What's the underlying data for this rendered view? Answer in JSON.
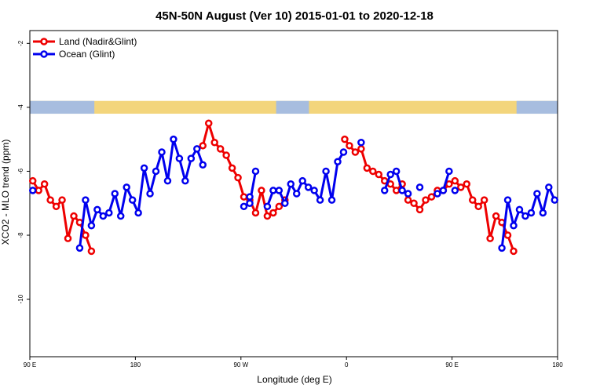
{
  "chart_data": {
    "type": "line",
    "title": "45N-50N August (Ver 10)   2015-01-01 to 2020-12-18",
    "xlabel": "Longitude (deg E)",
    "ylabel": "XCO2 - MLO trend (ppm)",
    "xlim": [
      90,
      540
    ],
    "ylim": [
      -11.8,
      -1.6
    ],
    "x_ticks": [
      {
        "value": 90,
        "label": "90 E"
      },
      {
        "value": 180,
        "label": "180"
      },
      {
        "value": 270,
        "label": "90 W"
      },
      {
        "value": 360,
        "label": "0"
      },
      {
        "value": 450,
        "label": "90 E"
      },
      {
        "value": 540,
        "label": "180"
      }
    ],
    "y_ticks": [
      -2,
      -4,
      -6,
      -8,
      -10
    ],
    "grid": false,
    "legend_position": "top-left",
    "land_band": {
      "y_top": -3.8,
      "y_bottom": -4.2,
      "land_color": "#f3d57c",
      "ocean_color": "#a7bddf"
    },
    "series": [
      {
        "name": "Land (Nadir&Glint)",
        "color": "#ee0000",
        "segments": [
          [
            [
              92.5,
              -6.3
            ],
            [
              97.5,
              -6.6
            ],
            [
              102.5,
              -6.4
            ],
            [
              107.5,
              -6.9
            ],
            [
              112.5,
              -7.1
            ],
            [
              117.5,
              -6.9
            ],
            [
              122.5,
              -8.1
            ],
            [
              127.5,
              -7.4
            ],
            [
              132.5,
              -7.6
            ],
            [
              137.5,
              -8.0
            ],
            [
              142.5,
              -8.5
            ]
          ],
          [
            [
              237.5,
              -5.2
            ],
            [
              242.5,
              -4.5
            ],
            [
              247.5,
              -5.1
            ],
            [
              252.5,
              -5.3
            ],
            [
              257.5,
              -5.5
            ],
            [
              262.5,
              -5.9
            ],
            [
              267.5,
              -6.2
            ],
            [
              272.5,
              -6.8
            ],
            [
              277.5,
              -6.9
            ],
            [
              282.5,
              -7.3
            ],
            [
              287.5,
              -6.6
            ],
            [
              292.5,
              -7.4
            ],
            [
              297.5,
              -7.3
            ],
            [
              302.5,
              -7.1
            ],
            [
              307.5,
              -6.9
            ]
          ],
          [
            [
              358.5,
              -5.0
            ],
            [
              362.5,
              -5.2
            ],
            [
              367.5,
              -5.4
            ],
            [
              372.5,
              -5.3
            ],
            [
              377.5,
              -5.9
            ],
            [
              382.5,
              -6.0
            ],
            [
              387.5,
              -6.1
            ],
            [
              392.5,
              -6.3
            ],
            [
              397.5,
              -6.4
            ],
            [
              402.5,
              -6.6
            ],
            [
              407.5,
              -6.4
            ],
            [
              412.5,
              -6.9
            ],
            [
              417.5,
              -7.0
            ],
            [
              422.5,
              -7.2
            ],
            [
              427.5,
              -6.9
            ],
            [
              432.5,
              -6.8
            ],
            [
              437.5,
              -6.6
            ],
            [
              442.5,
              -6.6
            ],
            [
              447.5,
              -6.4
            ],
            [
              452.5,
              -6.3
            ],
            [
              457.5,
              -6.5
            ],
            [
              462.5,
              -6.4
            ],
            [
              467.5,
              -6.9
            ],
            [
              472.5,
              -7.1
            ],
            [
              477.5,
              -6.9
            ],
            [
              482.5,
              -8.1
            ],
            [
              487.5,
              -7.4
            ],
            [
              492.5,
              -7.6
            ],
            [
              497.5,
              -8.0
            ],
            [
              502.5,
              -8.5
            ]
          ]
        ]
      },
      {
        "name": "Ocean (Glint)",
        "color": "#0000ee",
        "segments": [
          [
            [
              92.5,
              -6.6
            ]
          ],
          [
            [
              132.5,
              -8.4
            ],
            [
              137.5,
              -6.9
            ],
            [
              142.5,
              -7.7
            ],
            [
              147.5,
              -7.2
            ],
            [
              152.5,
              -7.4
            ],
            [
              157.5,
              -7.3
            ],
            [
              162.5,
              -6.7
            ],
            [
              167.5,
              -7.4
            ],
            [
              172.5,
              -6.5
            ],
            [
              177.5,
              -6.9
            ],
            [
              182.5,
              -7.3
            ],
            [
              187.5,
              -5.9
            ],
            [
              192.5,
              -6.7
            ],
            [
              197.5,
              -6.0
            ],
            [
              202.5,
              -5.4
            ],
            [
              207.5,
              -6.3
            ],
            [
              212.5,
              -5.0
            ],
            [
              217.5,
              -5.6
            ],
            [
              222.5,
              -6.3
            ],
            [
              227.5,
              -5.6
            ],
            [
              232.5,
              -5.3
            ],
            [
              237.5,
              -5.8
            ]
          ],
          [
            [
              272.5,
              -7.1
            ],
            [
              277.5,
              -7.0
            ],
            [
              282.5,
              -6.0
            ]
          ],
          [
            [
              277.5,
              -6.8
            ]
          ],
          [
            [
              292.5,
              -7.1
            ],
            [
              297.5,
              -6.6
            ],
            [
              302.5,
              -6.6
            ],
            [
              307.5,
              -7.0
            ],
            [
              312.5,
              -6.4
            ],
            [
              317.5,
              -6.7
            ],
            [
              322.5,
              -6.3
            ],
            [
              327.5,
              -6.5
            ],
            [
              332.5,
              -6.6
            ],
            [
              337.5,
              -6.9
            ],
            [
              342.5,
              -6.0
            ],
            [
              347.5,
              -6.9
            ],
            [
              352.5,
              -5.7
            ],
            [
              357.5,
              -5.4
            ]
          ],
          [
            [
              372.5,
              -5.1
            ]
          ],
          [
            [
              392.5,
              -6.6
            ],
            [
              397.5,
              -6.1
            ],
            [
              402.5,
              -6.0
            ],
            [
              407.5,
              -6.6
            ],
            [
              412.5,
              -6.7
            ]
          ],
          [
            [
              422.5,
              -6.5
            ]
          ],
          [
            [
              437.5,
              -6.7
            ],
            [
              442.5,
              -6.6
            ],
            [
              447.5,
              -6.0
            ]
          ],
          [
            [
              452.5,
              -6.6
            ]
          ],
          [
            [
              492.5,
              -8.4
            ],
            [
              497.5,
              -6.9
            ],
            [
              502.5,
              -7.7
            ],
            [
              507.5,
              -7.2
            ],
            [
              512.5,
              -7.4
            ],
            [
              517.5,
              -7.3
            ],
            [
              522.5,
              -6.7
            ],
            [
              527.5,
              -7.3
            ],
            [
              532.5,
              -6.5
            ],
            [
              537.5,
              -6.9
            ]
          ]
        ]
      }
    ]
  }
}
